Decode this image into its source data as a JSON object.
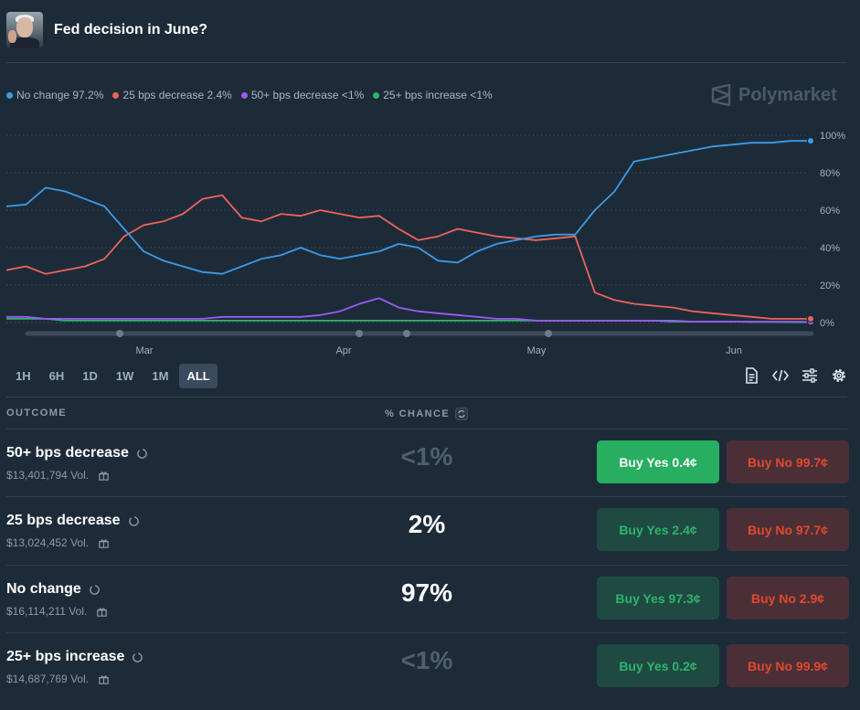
{
  "header": {
    "title": "Fed decision in June?"
  },
  "brand": {
    "name": "Polymarket"
  },
  "legend": [
    {
      "label": "No change 97.2%",
      "color": "#3b9be6"
    },
    {
      "label": "25 bps decrease 2.4%",
      "color": "#f0625a"
    },
    {
      "label": "50+ bps decrease <1%",
      "color": "#9b59f5"
    },
    {
      "label": "25+ bps increase <1%",
      "color": "#2fb36b"
    }
  ],
  "chart_data": {
    "type": "line",
    "x_tick_labels": [
      "Mar",
      "Apr",
      "May",
      "Jun"
    ],
    "y_tick_labels": [
      "100%",
      "80%",
      "60%",
      "40%",
      "20%",
      "0%"
    ],
    "ylim": [
      0,
      100
    ],
    "grid": true,
    "series": [
      {
        "name": "No change",
        "color": "#3b9be6",
        "values": [
          62,
          63,
          72,
          70,
          66,
          62,
          50,
          38,
          33,
          30,
          27,
          26,
          30,
          34,
          36,
          40,
          36,
          34,
          36,
          38,
          42,
          40,
          33,
          32,
          38,
          42,
          44,
          46,
          47,
          47,
          60,
          70,
          86,
          88,
          90,
          92,
          94,
          95,
          96,
          96,
          97,
          97
        ]
      },
      {
        "name": "25 bps decrease",
        "color": "#f0625a",
        "values": [
          28,
          30,
          26,
          28,
          30,
          34,
          46,
          52,
          54,
          58,
          66,
          68,
          56,
          54,
          58,
          57,
          60,
          58,
          56,
          57,
          50,
          44,
          46,
          50,
          48,
          46,
          45,
          44,
          45,
          46,
          16,
          12,
          10,
          9,
          8,
          6,
          5,
          4,
          3,
          2,
          2,
          2
        ]
      },
      {
        "name": "50+ bps decrease",
        "color": "#9b59f5",
        "values": [
          3,
          3,
          2,
          2,
          2,
          2,
          2,
          2,
          2,
          2,
          2,
          3,
          3,
          3,
          3,
          3,
          4,
          6,
          10,
          13,
          8,
          6,
          5,
          4,
          3,
          2,
          2,
          1,
          1,
          1,
          1,
          1,
          1,
          1,
          1,
          0.5,
          0.5,
          0.5,
          0.5,
          0.5,
          0.5,
          0.4
        ]
      },
      {
        "name": "25+ bps increase",
        "color": "#2fb36b",
        "values": [
          2,
          2,
          2,
          1,
          1,
          1,
          1,
          1,
          1,
          1,
          1,
          1,
          1,
          1,
          1,
          1,
          1,
          1,
          1,
          1,
          1,
          1,
          1,
          1,
          1,
          1,
          1,
          1,
          1,
          1,
          1,
          1,
          1,
          1,
          0.5,
          0.5,
          0.5,
          0.5,
          0.3,
          0.3,
          0.2,
          0.2
        ]
      }
    ]
  },
  "ranges": [
    "1H",
    "6H",
    "1D",
    "1W",
    "1M",
    "ALL"
  ],
  "active_range": "ALL",
  "table": {
    "outcome_header": "OUTCOME",
    "chance_header": "% CHANCE",
    "rows": [
      {
        "name": "50+ bps decrease",
        "volume": "$13,401,794 Vol.",
        "chance": "<1%",
        "yes": "Buy Yes 0.4¢",
        "no": "Buy No 99.7¢"
      },
      {
        "name": "25 bps decrease",
        "volume": "$13,024,452 Vol.",
        "chance": "2%",
        "yes": "Buy Yes 2.4¢",
        "no": "Buy No 97.7¢"
      },
      {
        "name": "No change",
        "volume": "$16,114,211 Vol.",
        "chance": "97%",
        "yes": "Buy Yes 97.3¢",
        "no": "Buy No 2.9¢"
      },
      {
        "name": "25+ bps increase",
        "volume": "$14,687,769 Vol.",
        "chance": "<1%",
        "yes": "Buy Yes 0.2¢",
        "no": "Buy No 99.9¢"
      }
    ]
  }
}
